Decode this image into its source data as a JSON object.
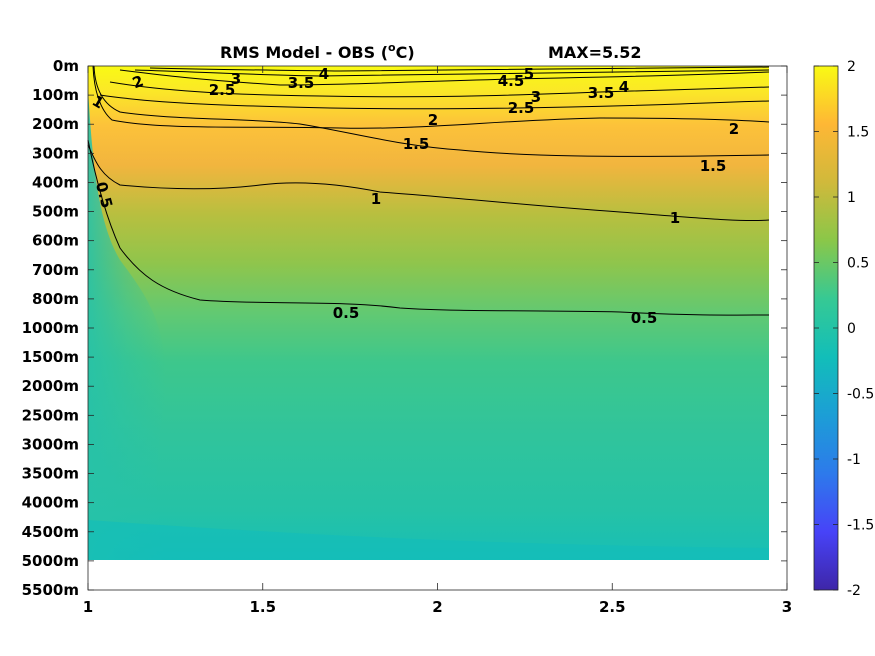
{
  "chart_data": {
    "type": "heatmap",
    "title": "RMS Model - OBS (",
    "title_superscript": "o",
    "title_unit": "C)",
    "max_label": "MAX=5.52",
    "x_ticks": [
      "1",
      "1.5",
      "2",
      "2.5",
      "3"
    ],
    "xlim": [
      1,
      3
    ],
    "data_xmax": 2.95,
    "y_ticks": [
      "0m",
      "100m",
      "200m",
      "300m",
      "400m",
      "500m",
      "600m",
      "700m",
      "800m",
      "1000m",
      "1500m",
      "2000m",
      "2500m",
      "3000m",
      "3500m",
      "4000m",
      "4500m",
      "5000m",
      "5500m"
    ],
    "data_depth_max_label": "5000m",
    "colorbar": {
      "ticks": [
        "2",
        "1.5",
        "1",
        "0.5",
        "0",
        "-0.5",
        "-1",
        "-1.5",
        "-2"
      ],
      "min": -2,
      "max": 2,
      "colors": [
        "#3e26a8",
        "#4743f8",
        "#2d7aeb",
        "#1c9ed6",
        "#12beb9",
        "#36c994",
        "#8ac749",
        "#d0b93b",
        "#feb735",
        "#f9fa14"
      ]
    },
    "contour_labels": [
      {
        "text": "2",
        "x": 1.14,
        "depth": "0–100m"
      },
      {
        "text": "2.5",
        "x": 1.38,
        "depth": "0–100m"
      },
      {
        "text": "3",
        "x": 1.42,
        "depth": "0m"
      },
      {
        "text": "3.5",
        "x": 1.61,
        "depth": "0m"
      },
      {
        "text": "4",
        "x": 1.68,
        "depth": "0m"
      },
      {
        "text": "4.5",
        "x": 2.21,
        "depth": "0m"
      },
      {
        "text": "5",
        "x": 2.26,
        "depth": "0m"
      },
      {
        "text": "3",
        "x": 2.28,
        "depth": "0–100m"
      },
      {
        "text": "2.5",
        "x": 2.24,
        "depth": "100m"
      },
      {
        "text": "3.5",
        "x": 2.55,
        "depth": "0–100m"
      },
      {
        "text": "4",
        "x": 2.61,
        "depth": "0–100m"
      },
      {
        "text": "1",
        "x": 1.03,
        "depth": "100m"
      },
      {
        "text": "2",
        "x": 1.99,
        "depth": "100–200m"
      },
      {
        "text": "2",
        "x": 2.84,
        "depth": "200m"
      },
      {
        "text": "1.5",
        "x": 1.94,
        "depth": "200–300m"
      },
      {
        "text": "1.5",
        "x": 2.79,
        "depth": "300m"
      },
      {
        "text": "1",
        "x": 1.82,
        "depth": "400m"
      },
      {
        "text": "1",
        "x": 2.68,
        "depth": "500m"
      },
      {
        "text": "0.5",
        "x": 1.05,
        "depth": "400–500m"
      },
      {
        "text": "0.5",
        "x": 1.74,
        "depth": "800m"
      },
      {
        "text": "0.5",
        "x": 2.59,
        "depth": "800–1000m"
      }
    ]
  }
}
